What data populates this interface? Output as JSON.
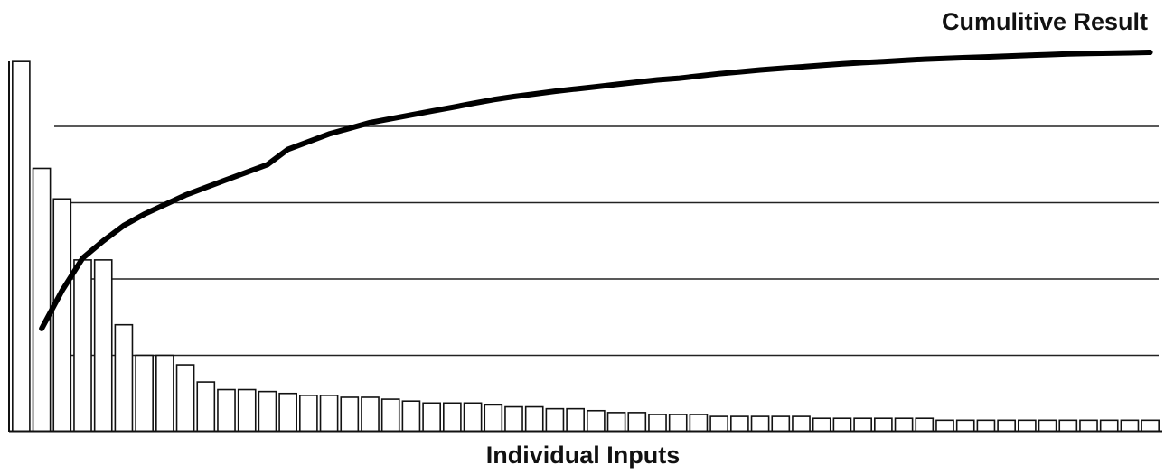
{
  "chart_data": {
    "type": "bar",
    "categories": [
      null,
      null,
      null,
      null,
      null,
      null,
      null,
      null,
      null,
      null,
      null,
      null,
      null,
      null,
      null,
      null,
      null,
      null,
      null,
      null,
      null,
      null,
      null,
      null,
      null,
      null,
      null,
      null,
      null,
      null,
      null,
      null,
      null,
      null,
      null,
      null,
      null,
      null,
      null,
      null,
      null,
      null,
      null,
      null,
      null,
      null,
      null,
      null,
      null,
      null,
      null,
      null,
      null,
      null,
      null,
      null
    ],
    "series": [
      {
        "name": "Individual Inputs",
        "type": "bar",
        "color": "#111111",
        "values": [
          97,
          69,
          61,
          45,
          45,
          28,
          20,
          20,
          17.5,
          13,
          11,
          11,
          10.5,
          10,
          9.5,
          9.5,
          9,
          9,
          8.5,
          8,
          7.5,
          7.5,
          7.5,
          7,
          6.5,
          6.5,
          6,
          6,
          5.5,
          5,
          5,
          4.5,
          4.5,
          4.5,
          4,
          4,
          4,
          4,
          4,
          3.5,
          3.5,
          3.5,
          3.5,
          3.5,
          3.5,
          3,
          3,
          3,
          3,
          3,
          3,
          3,
          3,
          3,
          3,
          3
        ]
      },
      {
        "name": "Cumulitive Result",
        "type": "line",
        "color": "#000000",
        "values": [
          null,
          27,
          37,
          45.5,
          50,
          54,
          57,
          59.5,
          62,
          64,
          66,
          68,
          70,
          74,
          76,
          78,
          79.5,
          81,
          82,
          83,
          84,
          85,
          86,
          87,
          87.8,
          88.5,
          89.2,
          89.8,
          90.4,
          91,
          91.6,
          92.2,
          92.6,
          93.2,
          93.8,
          94.3,
          94.8,
          95.2,
          95.6,
          96,
          96.4,
          96.7,
          97,
          97.3,
          97.6,
          97.8,
          98,
          98.2,
          98.4,
          98.6,
          98.8,
          99,
          99.1,
          99.2,
          99.3,
          99.4
        ]
      }
    ],
    "ylim": [
      0,
      100
    ],
    "yticks": [
      20,
      40,
      60,
      80
    ],
    "grid": true
  }
}
